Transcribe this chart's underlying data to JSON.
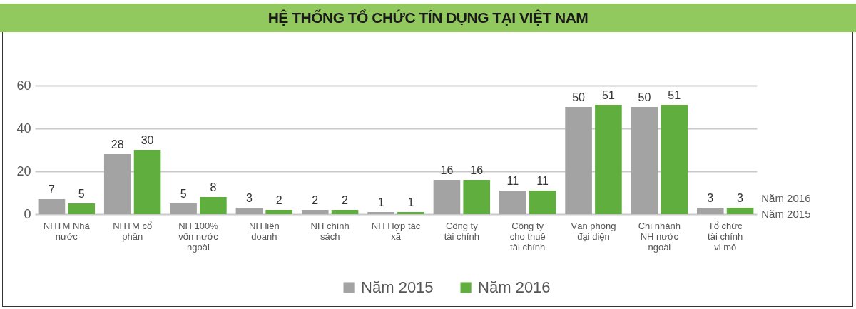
{
  "chart_data": {
    "type": "bar",
    "title": "HỆ THỐNG TỔ CHỨC TÍN DỤNG TẠI VIỆT NAM",
    "categories": [
      "NHTM Nhà nước",
      "NHTM cổ phần",
      "NH 100% vốn nước ngoài",
      "NH liên doanh",
      "NH chính sách",
      "NH Hợp tác xã",
      "Công ty tài chính",
      "Công ty cho thuê tài chính",
      "Văn phòng đại diện",
      "Chi nhánh NH nước ngoài",
      "Tổ chức tài chính vi mô"
    ],
    "series": [
      {
        "name": "Năm 2015",
        "color": "#a3a3a3",
        "values": [
          7,
          28,
          5,
          3,
          2,
          1,
          16,
          11,
          50,
          50,
          3
        ]
      },
      {
        "name": "Năm 2016",
        "color": "#5fae3e",
        "values": [
          5,
          30,
          8,
          2,
          2,
          1,
          16,
          11,
          51,
          51,
          3
        ]
      }
    ],
    "ylim": [
      0,
      60
    ],
    "yticks": [
      0,
      20,
      40,
      60
    ],
    "grid": "y",
    "legend": "bottom",
    "data_labels": true
  }
}
